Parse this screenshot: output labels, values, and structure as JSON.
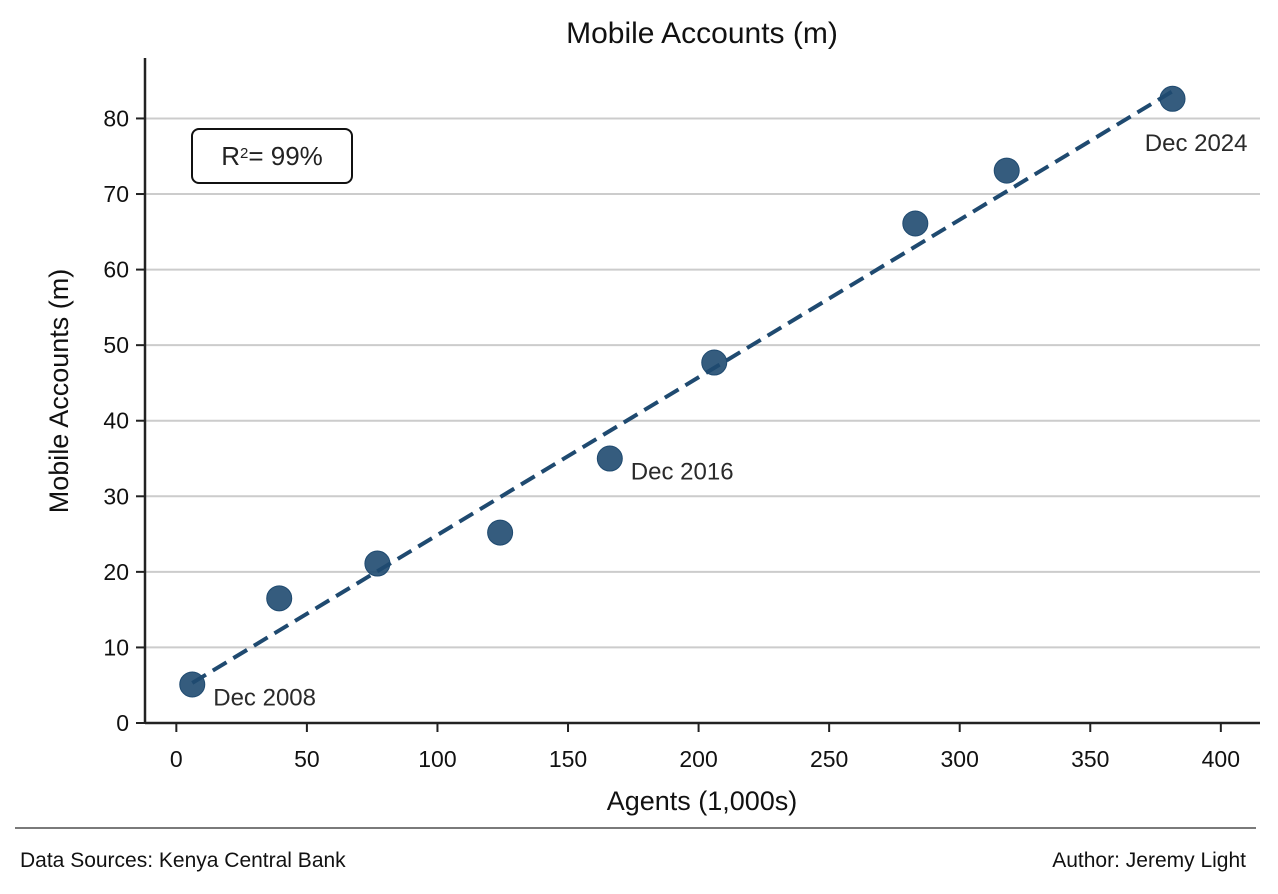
{
  "chart_data": {
    "type": "scatter",
    "title": "Mobile Accounts (m)",
    "xlabel": "Agents (1,000s)",
    "ylabel": "Mobile Accounts (m)",
    "xlim": [
      -12,
      415
    ],
    "ylim": [
      0,
      88
    ],
    "xticks": [
      0,
      50,
      100,
      150,
      200,
      250,
      300,
      350,
      400
    ],
    "yticks": [
      0,
      10,
      20,
      30,
      40,
      50,
      60,
      70,
      80
    ],
    "grid": "horizontal",
    "points": [
      {
        "x": 6.1,
        "y": 5.1
      },
      {
        "x": 39.4,
        "y": 16.5
      },
      {
        "x": 77,
        "y": 21.1
      },
      {
        "x": 124,
        "y": 25.2
      },
      {
        "x": 166,
        "y": 35
      },
      {
        "x": 206,
        "y": 47.7
      },
      {
        "x": 283,
        "y": 66.1
      },
      {
        "x": 318,
        "y": 73.1
      },
      {
        "x": 381.5,
        "y": 82.6
      }
    ],
    "trendline": {
      "style": "dashed",
      "from": {
        "x": 6.1,
        "y": 5.3
      },
      "to": {
        "x": 381.5,
        "y": 83.6
      }
    },
    "annotations": [
      {
        "text": "Dec 2008",
        "point_index": 0
      },
      {
        "text": "Dec 2016",
        "point_index": 4
      },
      {
        "text": "Dec 2024",
        "point_index": 8
      }
    ],
    "r2_label": {
      "prefix": "R",
      "sup": "2",
      "suffix": " = 99%"
    },
    "colors": {
      "marker": "#1f4a70",
      "line": "#1f4a70",
      "grid": "#cccccc",
      "axis": "#222222"
    }
  },
  "footer": {
    "source": "Data Sources: Kenya Central Bank",
    "author": "Author: Jeremy Light"
  }
}
